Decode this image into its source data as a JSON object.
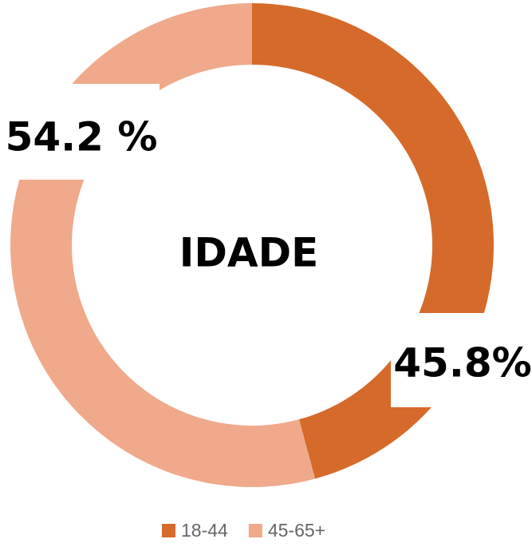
{
  "chart_data": {
    "type": "donut",
    "title": "IDADE",
    "categories": [
      "18-44",
      "45-65+"
    ],
    "values": [
      45.8,
      54.2
    ],
    "value_labels": [
      "45.8%",
      "54.2 %"
    ],
    "colors": [
      "#d66a2b",
      "#f0a98b"
    ],
    "legend": "bottom"
  }
}
